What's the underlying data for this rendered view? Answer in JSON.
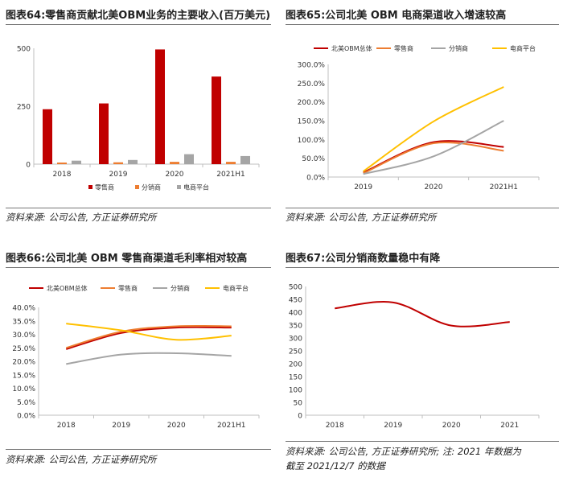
{
  "panels": [
    {
      "title": "图表64:零售商贡献北美OBM业务的主要收入(百万美元)",
      "source": "资料来源: 公司公告, 方正证券研究所",
      "source2": ""
    },
    {
      "title": "图表65:公司北美 OBM 电商渠道收入增速较高",
      "source": "资料来源: 公司公告, 方正证券研究所",
      "source2": ""
    },
    {
      "title": "图表66:公司北美 OBM 零售商渠道毛利率相对较高",
      "source": "资料来源: 公司公告, 方正证券研究所",
      "source2": ""
    },
    {
      "title": "图表67:公司分销商数量稳中有降",
      "source": "资料来源: 公司公告, 方正证券研究所; 注: 2021 年数据为",
      "source2": "截至 2021/12/7 的数据"
    }
  ],
  "chart_data": [
    {
      "type": "bar",
      "categories": [
        "2018",
        "2019",
        "2020",
        "2021H1"
      ],
      "series": [
        {
          "name": "零售商",
          "color": "#c00000",
          "values": [
            237,
            262,
            495,
            378
          ]
        },
        {
          "name": "分销商",
          "color": "#ed7d31",
          "values": [
            7,
            8,
            10,
            10
          ]
        },
        {
          "name": "电商平台",
          "color": "#a5a5a5",
          "values": [
            15,
            18,
            43,
            35
          ]
        }
      ],
      "ylim": [
        0,
        500
      ],
      "yticks": [
        "0",
        "250",
        "500"
      ],
      "legend": "bottom"
    },
    {
      "type": "line",
      "categories": [
        "2019",
        "2020",
        "2021H1"
      ],
      "series": [
        {
          "name": "北美OBM总体",
          "color": "#c00000",
          "values": [
            12,
            93,
            80
          ]
        },
        {
          "name": "零售商",
          "color": "#ed7d31",
          "values": [
            10,
            90,
            70
          ]
        },
        {
          "name": "分销商",
          "color": "#a5a5a5",
          "values": [
            8,
            55,
            150
          ]
        },
        {
          "name": "电商平台",
          "color": "#ffc000",
          "values": [
            15,
            148,
            240
          ]
        }
      ],
      "ylim": [
        0,
        300
      ],
      "yticks": [
        "0.0%",
        "50.0%",
        "100.0%",
        "150.0%",
        "200.0%",
        "250.0%",
        "300.0%"
      ],
      "legend": "top"
    },
    {
      "type": "line",
      "categories": [
        "2018",
        "2019",
        "2020",
        "2021H1"
      ],
      "series": [
        {
          "name": "北美OBM总体",
          "color": "#c00000",
          "values": [
            24.5,
            30.5,
            32.5,
            32.5
          ]
        },
        {
          "name": "零售商",
          "color": "#ed7d31",
          "values": [
            25,
            31,
            33,
            33
          ]
        },
        {
          "name": "分销商",
          "color": "#a5a5a5",
          "values": [
            19,
            22.5,
            23,
            22
          ]
        },
        {
          "name": "电商平台",
          "color": "#ffc000",
          "values": [
            34,
            31.5,
            28,
            29.5
          ]
        }
      ],
      "ylim": [
        0,
        40
      ],
      "yticks": [
        "0.0%",
        "5.0%",
        "10.0%",
        "15.0%",
        "20.0%",
        "25.0%",
        "30.0%",
        "35.0%",
        "40.0%"
      ],
      "legend": "top"
    },
    {
      "type": "line",
      "categories": [
        "2018",
        "2019",
        "2020",
        "2021"
      ],
      "series": [
        {
          "color": "#c00000",
          "values": [
            415,
            438,
            348,
            362
          ]
        }
      ],
      "ylim": [
        0,
        500
      ],
      "yticks": [
        "0",
        "50",
        "100",
        "150",
        "200",
        "250",
        "300",
        "350",
        "400",
        "450",
        "500"
      ],
      "legend": "none"
    }
  ]
}
